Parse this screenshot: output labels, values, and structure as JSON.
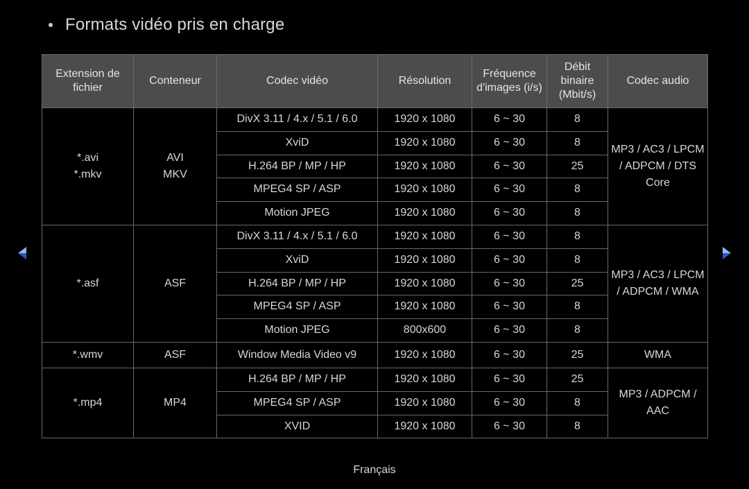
{
  "title": "Formats vidéo pris en charge",
  "footer": "Français",
  "colors": {
    "background": "#000000",
    "text": "#d8d8d8",
    "header_bg": "#4c4c4c",
    "border": "#6a6a6a",
    "arrow_fill": "#2a54c8",
    "arrow_light": "#9db2e8"
  },
  "table": {
    "headers": {
      "ext": "Extension de fichier",
      "container": "Conteneur",
      "vcodec": "Codec vidéo",
      "resolution": "Résolution",
      "fps": "Fréquence d'images (i/s)",
      "bitrate": "Débit binaire (Mbit/s)",
      "acodec": "Codec audio"
    },
    "groups": [
      {
        "ext": "*.avi\n*.mkv",
        "container": "AVI\nMKV",
        "audio": "MP3 / AC3 / LPCM / ADPCM / DTS Core",
        "rows": [
          {
            "vcodec": "DivX 3.11 / 4.x / 5.1 / 6.0",
            "res": "1920 x 1080",
            "fps": "6 ~ 30",
            "bitrate": "8"
          },
          {
            "vcodec": "XviD",
            "res": "1920 x 1080",
            "fps": "6 ~ 30",
            "bitrate": "8"
          },
          {
            "vcodec": "H.264 BP / MP / HP",
            "res": "1920 x 1080",
            "fps": "6 ~ 30",
            "bitrate": "25"
          },
          {
            "vcodec": "MPEG4 SP / ASP",
            "res": "1920 x 1080",
            "fps": "6 ~ 30",
            "bitrate": "8"
          },
          {
            "vcodec": "Motion JPEG",
            "res": "1920 x 1080",
            "fps": "6 ~ 30",
            "bitrate": "8"
          }
        ]
      },
      {
        "ext": "*.asf",
        "container": "ASF",
        "audio": "MP3 / AC3 / LPCM / ADPCM / WMA",
        "rows": [
          {
            "vcodec": "DivX 3.11 / 4.x / 5.1 / 6.0",
            "res": "1920 x 1080",
            "fps": "6 ~ 30",
            "bitrate": "8"
          },
          {
            "vcodec": "XviD",
            "res": "1920 x 1080",
            "fps": "6 ~ 30",
            "bitrate": "8"
          },
          {
            "vcodec": "H.264 BP / MP / HP",
            "res": "1920 x 1080",
            "fps": "6 ~ 30",
            "bitrate": "25"
          },
          {
            "vcodec": "MPEG4 SP / ASP",
            "res": "1920 x 1080",
            "fps": "6 ~ 30",
            "bitrate": "8"
          },
          {
            "vcodec": "Motion JPEG",
            "res": "800x600",
            "fps": "6 ~ 30",
            "bitrate": "8"
          }
        ]
      },
      {
        "ext": "*.wmv",
        "container": "ASF",
        "audio": "WMA",
        "rows": [
          {
            "vcodec": "Window Media Video v9",
            "res": "1920 x 1080",
            "fps": "6 ~ 30",
            "bitrate": "25"
          }
        ]
      },
      {
        "ext": "*.mp4",
        "container": "MP4",
        "audio": "MP3 / ADPCM / AAC",
        "rows": [
          {
            "vcodec": "H.264 BP / MP / HP",
            "res": "1920 x 1080",
            "fps": "6 ~ 30",
            "bitrate": "25"
          },
          {
            "vcodec": "MPEG4 SP / ASP",
            "res": "1920 x 1080",
            "fps": "6 ~ 30",
            "bitrate": "8"
          },
          {
            "vcodec": "XVID",
            "res": "1920 x 1080",
            "fps": "6 ~ 30",
            "bitrate": "8"
          }
        ]
      }
    ]
  }
}
